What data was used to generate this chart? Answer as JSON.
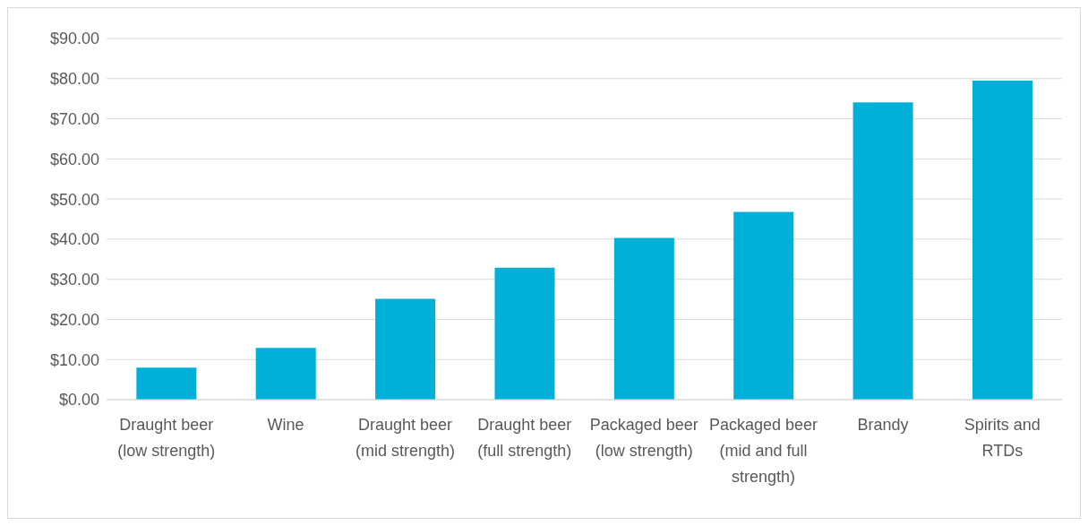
{
  "chart_data": {
    "type": "bar",
    "categories": [
      "Draught beer (low strength)",
      "Wine",
      "Draught beer (mid strength)",
      "Draught beer (full strength)",
      "Packaged beer (low strength)",
      "Packaged beer (mid and full strength)",
      "Brandy",
      "Spirits and RTDs"
    ],
    "values": [
      8.0,
      12.9,
      25.1,
      32.9,
      40.3,
      46.8,
      74.1,
      79.5
    ],
    "color": "#00b0d8",
    "ylim": [
      0,
      90
    ],
    "yticks": [
      {
        "value": 0,
        "label": "$0.00"
      },
      {
        "value": 10,
        "label": "$10.00"
      },
      {
        "value": 20,
        "label": "$20.00"
      },
      {
        "value": 30,
        "label": "$30.00"
      },
      {
        "value": 40,
        "label": "$40.00"
      },
      {
        "value": 50,
        "label": "$50.00"
      },
      {
        "value": 60,
        "label": "$60.00"
      },
      {
        "value": 70,
        "label": "$70.00"
      },
      {
        "value": 80,
        "label": "$80.00"
      },
      {
        "value": 90,
        "label": "$90.00"
      }
    ],
    "grid": "y"
  }
}
